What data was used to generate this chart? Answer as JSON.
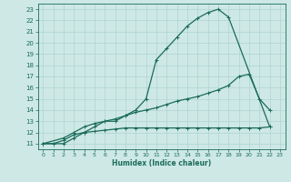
{
  "xlabel": "Humidex (Indice chaleur)",
  "bg_color": "#cde8e5",
  "line_color": "#1a6b5a",
  "grid_color": "#b0d4d0",
  "xlim": [
    -0.5,
    23.5
  ],
  "ylim": [
    10.5,
    23.5
  ],
  "xticks": [
    0,
    1,
    2,
    3,
    4,
    5,
    6,
    7,
    8,
    9,
    10,
    11,
    12,
    13,
    14,
    15,
    16,
    17,
    18,
    19,
    20,
    21,
    22,
    23
  ],
  "yticks": [
    11,
    12,
    13,
    14,
    15,
    16,
    17,
    18,
    19,
    20,
    21,
    22,
    23
  ],
  "series1_x": [
    0,
    1,
    2,
    3,
    4,
    5,
    6,
    7,
    8,
    9,
    10,
    11,
    12,
    13,
    14,
    15,
    16,
    17,
    18,
    22
  ],
  "series1_y": [
    11,
    11,
    11,
    11.5,
    12,
    12.5,
    13,
    13,
    13.5,
    14,
    15,
    18.5,
    19.5,
    20.5,
    21.5,
    22.2,
    22.7,
    23,
    22.3,
    12.5
  ],
  "series2_x": [
    0,
    2,
    3,
    4,
    5,
    6,
    7,
    8,
    9,
    10,
    11,
    12,
    13,
    14,
    15,
    16,
    17,
    18,
    19,
    20,
    21,
    22
  ],
  "series2_y": [
    11,
    11.5,
    12,
    12.5,
    12.8,
    13,
    13.2,
    13.5,
    13.8,
    14,
    14.2,
    14.5,
    14.8,
    15,
    15.2,
    15.5,
    15.8,
    16.2,
    17,
    17.2,
    15,
    14
  ],
  "series3_x": [
    0,
    1,
    2,
    3,
    4,
    5,
    6,
    7,
    8,
    9,
    10,
    11,
    12,
    13,
    14,
    15,
    16,
    17,
    18,
    19,
    20,
    21,
    22
  ],
  "series3_y": [
    11,
    11,
    11.3,
    11.8,
    12,
    12.1,
    12.2,
    12.3,
    12.4,
    12.4,
    12.4,
    12.4,
    12.4,
    12.4,
    12.4,
    12.4,
    12.4,
    12.4,
    12.4,
    12.4,
    12.4,
    12.4,
    12.5
  ]
}
